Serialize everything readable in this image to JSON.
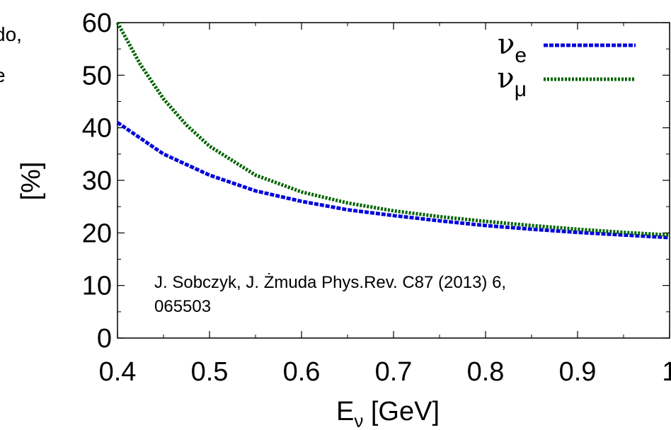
{
  "chart_data": {
    "type": "line",
    "title": "",
    "xlabel": "E",
    "xlabel_sub": "ν",
    "xlabel_unit": " [GeV]",
    "ylabel": "[%]",
    "xlim": [
      0.4,
      1.0
    ],
    "ylim": [
      0,
      60
    ],
    "xticks": [
      0.4,
      0.5,
      0.6,
      0.7,
      0.8,
      0.9,
      1.0
    ],
    "xtick_labels": [
      "0.4",
      "0.5",
      "0.6",
      "0.7",
      "0.8",
      "0.9",
      "1"
    ],
    "yticks": [
      0,
      10,
      20,
      30,
      40,
      50,
      60
    ],
    "ytick_labels": [
      "0",
      "10",
      "20",
      "30",
      "40",
      "50",
      "60"
    ],
    "grid": false,
    "legend_position": "top-right",
    "annotation_lines": [
      "J. Sobczyk, J. Żmuda Phys.Rev. C87 (2013) 6,",
      "065503"
    ],
    "clipped_left_text": [
      "do,",
      "e"
    ],
    "series": [
      {
        "name": "ν",
        "name_sub": "e",
        "color": "#0000dd",
        "dash": "dashed",
        "x": [
          0.4,
          0.425,
          0.45,
          0.475,
          0.5,
          0.55,
          0.6,
          0.65,
          0.7,
          0.75,
          0.8,
          0.85,
          0.9,
          0.95,
          1.0
        ],
        "y": [
          41.0,
          38.0,
          35.0,
          33.0,
          31.0,
          28.0,
          26.0,
          24.4,
          23.3,
          22.3,
          21.4,
          20.7,
          20.1,
          19.6,
          19.1
        ]
      },
      {
        "name": "ν",
        "name_sub": "μ",
        "color": "#006400",
        "dash": "dotted",
        "x": [
          0.4,
          0.425,
          0.45,
          0.475,
          0.5,
          0.55,
          0.6,
          0.65,
          0.7,
          0.75,
          0.8,
          0.85,
          0.9,
          0.95,
          1.0
        ],
        "y": [
          60.0,
          52.0,
          45.5,
          40.5,
          36.5,
          31.0,
          27.8,
          25.7,
          24.2,
          23.1,
          22.2,
          21.4,
          20.7,
          20.1,
          19.6
        ]
      }
    ]
  }
}
